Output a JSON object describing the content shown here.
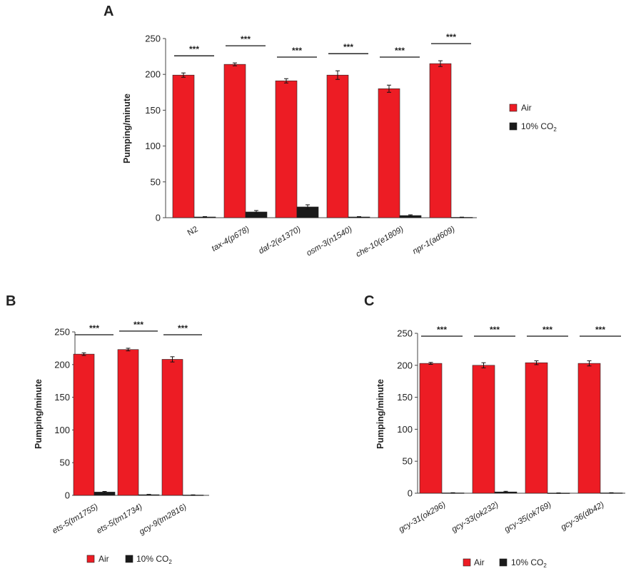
{
  "colors": {
    "air": "#ed1c24",
    "co2": "#1a1a1a",
    "axis": "#444444"
  },
  "legend": {
    "air": "Air",
    "co2_main": "10% CO",
    "co2_sub": "2"
  },
  "chart_data": [
    {
      "panel": "A",
      "type": "bar",
      "ylabel": "Pumping/minute",
      "ylim": [
        0,
        250
      ],
      "yticks": [
        0,
        50,
        100,
        150,
        200,
        250
      ],
      "categories": [
        "N2",
        "tax-4(p678)",
        "daf-2(e1370)",
        "osm-3(n1540)",
        "che-10(e1809)",
        "npr-1(ad609)"
      ],
      "series": [
        {
          "name": "Air",
          "values": [
            199,
            214,
            191,
            199,
            180,
            215
          ],
          "errors": [
            3,
            2,
            3,
            6,
            5,
            4
          ]
        },
        {
          "name": "10% CO2",
          "values": [
            1,
            8,
            15,
            1,
            3,
            0.5
          ],
          "errors": [
            0.5,
            2,
            3,
            0.5,
            1,
            0.3
          ]
        }
      ],
      "significance": [
        "***",
        "***",
        "***",
        "***",
        "***",
        "***"
      ],
      "legend_position": "right"
    },
    {
      "panel": "B",
      "type": "bar",
      "ylabel": "Pumping/minute",
      "ylim": [
        0,
        250
      ],
      "yticks": [
        0,
        50,
        100,
        150,
        200,
        250
      ],
      "categories": [
        "ets-5(tm1755)",
        "ets-5(tm1734)",
        "gcy-9(tm2816)"
      ],
      "series": [
        {
          "name": "Air",
          "values": [
            216,
            223,
            208
          ],
          "errors": [
            2,
            2,
            4
          ]
        },
        {
          "name": "10% CO2",
          "values": [
            5,
            1,
            0.5
          ],
          "errors": [
            1,
            0.5,
            0.3
          ]
        }
      ],
      "significance": [
        "***",
        "***",
        "***"
      ],
      "legend_position": "bottom"
    },
    {
      "panel": "C",
      "type": "bar",
      "ylabel": "Pumping/minute",
      "ylim": [
        0,
        250
      ],
      "yticks": [
        0,
        50,
        100,
        150,
        200,
        250
      ],
      "categories": [
        "gcy-31(ok296)",
        "gcy-33(ok232)",
        "gcy-35(ok769)",
        "gcy-36(db42)"
      ],
      "series": [
        {
          "name": "Air",
          "values": [
            203,
            200,
            204,
            203
          ],
          "errors": [
            1.5,
            4,
            3,
            4
          ]
        },
        {
          "name": "10% CO2",
          "values": [
            0.5,
            2,
            0.3,
            0.5
          ],
          "errors": [
            0.3,
            1,
            0.2,
            0.3
          ]
        }
      ],
      "significance": [
        "***",
        "***",
        "***",
        "***"
      ],
      "legend_position": "bottom"
    }
  ]
}
